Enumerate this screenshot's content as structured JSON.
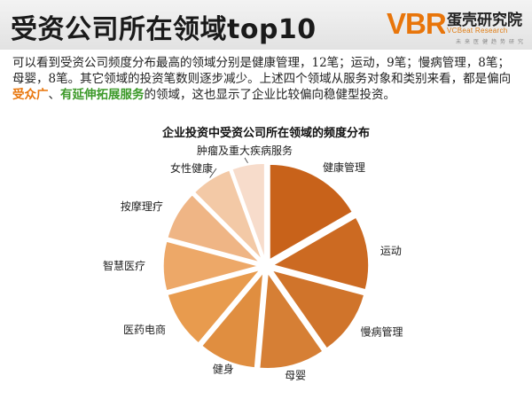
{
  "header": {
    "title": "受资公司所在领域top10"
  },
  "logo": {
    "mark_text": "VBR",
    "name_cn": "蛋壳研究院",
    "name_en": "VCBeat Research",
    "sub": "未来医健趋势研究"
  },
  "description": {
    "part1": "可以看到受资公司频度分布最高的领域分别是健康管理，12笔；运动，9笔；慢病管理，8笔；母婴，8笔。其它领域的投资笔数则逐步减少。上述四个领域从服务对象和类别来看，都是偏向",
    "hl1": "受众广",
    "sep": "、",
    "hl2": "有延伸拓展服务",
    "part2": "的领域，这也显示了企业比较偏向稳健型投资。"
  },
  "colors": {
    "brand_orange": "#e8750a",
    "highlight_green": "#3d9a2a"
  },
  "chart_data": {
    "type": "pie",
    "title": "企业投资中受资公司所在领域的频度分布",
    "exploded": true,
    "categories": [
      "健康管理",
      "运动",
      "慢病管理",
      "母婴",
      "健身",
      "医药电商",
      "智慧医疗",
      "按摩理疗",
      "女性健康",
      "肿瘤及重大疾病服务"
    ],
    "values": [
      12,
      9,
      8,
      8,
      7,
      7,
      6,
      6,
      5,
      4
    ],
    "colors": [
      "#c8621a",
      "#cc6a22",
      "#d0742b",
      "#d67f35",
      "#e08e40",
      "#e89b4e",
      "#eda868",
      "#efb585",
      "#f3c9a6",
      "#f7dccb"
    ]
  }
}
